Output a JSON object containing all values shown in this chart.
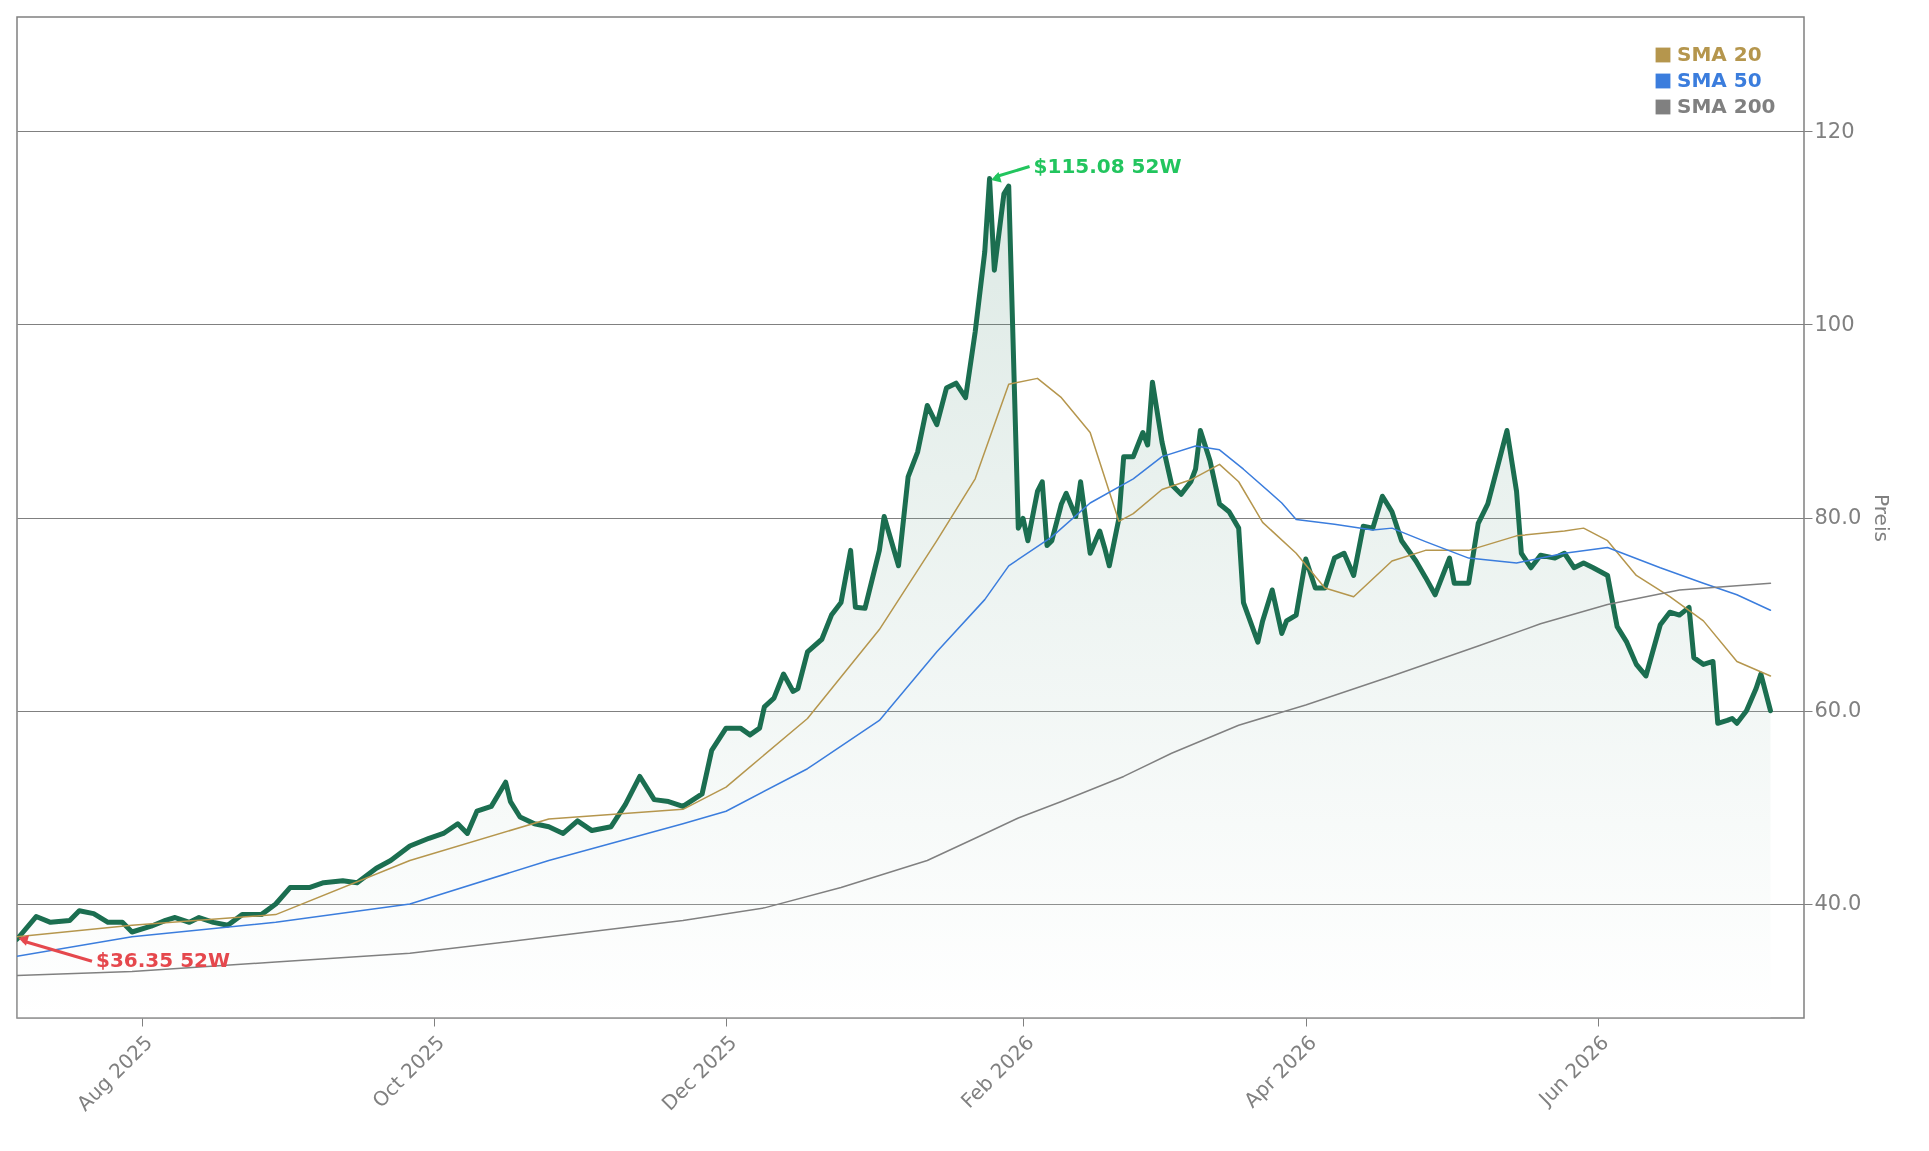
{
  "chart_data": {
    "type": "line",
    "ylabel": "Preis",
    "xlim": [
      "2025-07-06",
      "2026-07-14"
    ],
    "xticks": [
      {
        "value": "2025-08-01",
        "label": "Aug 2025"
      },
      {
        "value": "2025-10-01",
        "label": "Oct 2025"
      },
      {
        "value": "2025-12-01",
        "label": "Dec 2025"
      },
      {
        "value": "2026-02-01",
        "label": "Feb 2026"
      },
      {
        "value": "2026-04-01",
        "label": "Apr 2026"
      },
      {
        "value": "2026-06-01",
        "label": "Jun 2026"
      }
    ],
    "ylim": [
      28.2,
      131.8
    ],
    "yticks": [
      {
        "value": 40,
        "label": "40.0"
      },
      {
        "value": 60,
        "label": "60.0"
      },
      {
        "value": 80,
        "label": "80.0"
      },
      100,
      120
    ],
    "grid": "y",
    "legend": "top right",
    "series": [
      {
        "type": "area",
        "color": "#1b6e50",
        "x": [
          "2025-07-06",
          "2025-07-10",
          "2025-07-13",
          "2025-07-17",
          "2025-07-19",
          "2025-07-22",
          "2025-07-25",
          "2025-07-28",
          "2025-07-30",
          "2025-08-03",
          "2025-08-06",
          "2025-08-08",
          "2025-08-11",
          "2025-08-13",
          "2025-08-16",
          "2025-08-19",
          "2025-08-22",
          "2025-08-26",
          "2025-08-29",
          "2025-09-01",
          "2025-09-05",
          "2025-09-08",
          "2025-09-12",
          "2025-09-15",
          "2025-09-19",
          "2025-09-22",
          "2025-09-26",
          "2025-09-30",
          "2025-10-03",
          "2025-10-06",
          "2025-10-08",
          "2025-10-10",
          "2025-10-13",
          "2025-10-16",
          "2025-10-17",
          "2025-10-19",
          "2025-10-22",
          "2025-10-25",
          "2025-10-28",
          "2025-10-31",
          "2025-11-03",
          "2025-11-07",
          "2025-11-10",
          "2025-11-13",
          "2025-11-16",
          "2025-11-19",
          "2025-11-22",
          "2025-11-26",
          "2025-11-28",
          "2025-12-01",
          "2025-12-04",
          "2025-12-06",
          "2025-12-08",
          "2025-12-09",
          "2025-12-11",
          "2025-12-13",
          "2025-12-15",
          "2025-12-16",
          "2025-12-18",
          "2025-12-21",
          "2025-12-23",
          "2025-12-25",
          "2025-12-27",
          "2025-12-28",
          "2025-12-30",
          "2026-01-02",
          "2026-01-03",
          "2026-01-06",
          "2026-01-08",
          "2026-01-10",
          "2026-01-12",
          "2026-01-14",
          "2026-01-16",
          "2026-01-18",
          "2026-01-20",
          "2026-01-22",
          "2026-01-24",
          "2026-01-25",
          "2026-01-26",
          "2026-01-28",
          "2026-01-29",
          "2026-01-31",
          "2026-02-01",
          "2026-02-02",
          "2026-02-04",
          "2026-02-05",
          "2026-02-06",
          "2026-02-07",
          "2026-02-09",
          "2026-02-10",
          "2026-02-12",
          "2026-02-13",
          "2026-02-15",
          "2026-02-17",
          "2026-02-18",
          "2026-02-19",
          "2026-02-21",
          "2026-02-22",
          "2026-02-24",
          "2026-02-26",
          "2026-02-27",
          "2026-02-28",
          "2026-03-02",
          "2026-03-04",
          "2026-03-06",
          "2026-03-08",
          "2026-03-09",
          "2026-03-10",
          "2026-03-12",
          "2026-03-14",
          "2026-03-16",
          "2026-03-18",
          "2026-03-19",
          "2026-03-22",
          "2026-03-23",
          "2026-03-25",
          "2026-03-27",
          "2026-03-28",
          "2026-03-30",
          "2026-04-01",
          "2026-04-03",
          "2026-04-05",
          "2026-04-07",
          "2026-04-09",
          "2026-04-11",
          "2026-04-13",
          "2026-04-15",
          "2026-04-17",
          "2026-04-19",
          "2026-04-21",
          "2026-04-24",
          "2026-04-26",
          "2026-04-28",
          "2026-05-01",
          "2026-05-02",
          "2026-05-05",
          "2026-05-07",
          "2026-05-09",
          "2026-05-11",
          "2026-05-13",
          "2026-05-15",
          "2026-05-16",
          "2026-05-18",
          "2026-05-20",
          "2026-05-23",
          "2026-05-25",
          "2026-05-27",
          "2026-05-29",
          "2026-05-31",
          "2026-06-03",
          "2026-06-05",
          "2026-06-07",
          "2026-06-09",
          "2026-06-11",
          "2026-06-14",
          "2026-06-16",
          "2026-06-18",
          "2026-06-20",
          "2026-06-21",
          "2026-06-23",
          "2026-06-25",
          "2026-06-26",
          "2026-06-28",
          "2026-06-29",
          "2026-06-30",
          "2026-07-02",
          "2026-07-04",
          "2026-07-05",
          "2026-07-07"
        ],
        "values": [
          36.35,
          38.7,
          38.1,
          38.3,
          39.3,
          39.0,
          38.1,
          38.1,
          37.1,
          37.7,
          38.3,
          38.6,
          38.1,
          38.6,
          38.1,
          37.8,
          38.9,
          38.9,
          40.0,
          41.7,
          41.7,
          42.2,
          42.4,
          42.2,
          43.7,
          44.5,
          46.0,
          46.8,
          47.3,
          48.3,
          47.3,
          49.6,
          50.1,
          52.6,
          50.6,
          49.0,
          48.3,
          48.0,
          47.3,
          48.6,
          47.6,
          48.0,
          50.3,
          53.2,
          50.8,
          50.6,
          50.1,
          51.4,
          55.9,
          58.2,
          58.2,
          57.5,
          58.2,
          60.4,
          61.3,
          63.8,
          62.0,
          62.3,
          66.1,
          67.4,
          69.9,
          71.2,
          76.6,
          70.7,
          70.6,
          76.6,
          80.1,
          75.0,
          84.2,
          86.8,
          91.6,
          89.6,
          93.4,
          93.9,
          92.4,
          99.2,
          107.5,
          115.08,
          105.6,
          113.5,
          114.3,
          78.9,
          79.9,
          77.6,
          82.7,
          83.7,
          77.1,
          77.6,
          81.4,
          82.5,
          80.1,
          83.7,
          76.3,
          78.6,
          76.9,
          75.0,
          79.9,
          86.3,
          86.3,
          88.8,
          87.5,
          94.0,
          87.8,
          83.4,
          82.4,
          83.7,
          85.0,
          89.0,
          85.9,
          81.4,
          80.6,
          78.9,
          71.2,
          67.1,
          69.3,
          72.5,
          68.0,
          69.3,
          69.9,
          75.7,
          72.7,
          72.7,
          75.8,
          76.3,
          74.0,
          79.1,
          78.9,
          82.2,
          80.6,
          77.6,
          75.5,
          73.8,
          72.0,
          75.8,
          73.2,
          73.2,
          79.4,
          81.4,
          85.2,
          89.0,
          82.7,
          76.3,
          74.8,
          76.1,
          75.8,
          76.3,
          74.8,
          75.3,
          74.8,
          74.0,
          68.7,
          67.1,
          64.8,
          63.6,
          68.9,
          70.2,
          69.9,
          70.7,
          65.5,
          64.8,
          65.1,
          58.7,
          59.0,
          59.2,
          58.7,
          60.0,
          62.3,
          63.8,
          60.0
        ]
      },
      {
        "name": "SMA 20",
        "color": "#b5964d",
        "x": [
          "2025-07-06",
          "2025-07-30",
          "2025-08-29",
          "2025-09-26",
          "2025-10-25",
          "2025-11-22",
          "2025-12-01",
          "2025-12-18",
          "2026-01-02",
          "2026-01-14",
          "2026-01-22",
          "2026-01-29",
          "2026-02-04",
          "2026-02-09",
          "2026-02-15",
          "2026-02-21",
          "2026-02-24",
          "2026-03-02",
          "2026-03-08",
          "2026-03-14",
          "2026-03-18",
          "2026-03-23",
          "2026-03-30",
          "2026-04-05",
          "2026-04-11",
          "2026-04-19",
          "2026-04-26",
          "2026-05-05",
          "2026-05-15",
          "2026-05-25",
          "2026-05-29",
          "2026-06-03",
          "2026-06-09",
          "2026-06-16",
          "2026-06-23",
          "2026-06-30",
          "2026-07-07"
        ],
        "values": [
          36.6,
          37.8,
          38.9,
          44.5,
          48.8,
          49.8,
          52.1,
          59.2,
          68.4,
          77.6,
          84.0,
          93.8,
          94.4,
          92.4,
          88.8,
          79.6,
          80.4,
          82.9,
          83.9,
          85.5,
          83.7,
          79.5,
          76.3,
          72.7,
          71.8,
          75.5,
          76.6,
          76.6,
          78.1,
          78.6,
          78.9,
          77.6,
          74.0,
          71.8,
          69.3,
          65.1,
          63.6
        ]
      },
      {
        "name": "SMA 50",
        "color": "#3b7ddd",
        "x": [
          "2025-07-06",
          "2025-07-30",
          "2025-08-29",
          "2025-09-26",
          "2025-10-25",
          "2025-11-22",
          "2025-12-01",
          "2025-12-18",
          "2026-01-02",
          "2026-01-14",
          "2026-01-24",
          "2026-01-29",
          "2026-02-07",
          "2026-02-15",
          "2026-02-24",
          "2026-03-02",
          "2026-03-09",
          "2026-03-14",
          "2026-03-19",
          "2026-03-27",
          "2026-03-30",
          "2026-04-07",
          "2026-04-15",
          "2026-04-19",
          "2026-04-26",
          "2026-05-05",
          "2026-05-15",
          "2026-05-25",
          "2026-06-03",
          "2026-06-14",
          "2026-06-23",
          "2026-06-30",
          "2026-07-07"
        ],
        "values": [
          34.6,
          36.6,
          38.1,
          40.0,
          44.5,
          48.3,
          49.6,
          54.0,
          59.0,
          66.1,
          71.5,
          75.0,
          78.0,
          81.5,
          84.0,
          86.3,
          87.4,
          87.0,
          85.0,
          81.5,
          79.8,
          79.3,
          78.7,
          78.9,
          77.5,
          75.8,
          75.3,
          76.3,
          76.9,
          74.8,
          73.2,
          72.0,
          70.4
        ]
      },
      {
        "name": "SMA 200",
        "color": "#808080",
        "x": [
          "2025-07-06",
          "2025-07-30",
          "2025-08-29",
          "2025-09-26",
          "2025-10-25",
          "2025-11-22",
          "2025-12-09",
          "2025-12-25",
          "2026-01-12",
          "2026-01-22",
          "2026-01-31",
          "2026-02-09",
          "2026-02-22",
          "2026-03-04",
          "2026-03-18",
          "2026-04-01",
          "2026-04-19",
          "2026-05-07",
          "2026-05-20",
          "2026-06-03",
          "2026-06-18",
          "2026-07-07"
        ],
        "values": [
          32.6,
          33.0,
          34.0,
          34.9,
          36.6,
          38.3,
          39.6,
          41.7,
          44.5,
          46.8,
          48.9,
          50.6,
          53.2,
          55.6,
          58.5,
          60.6,
          63.6,
          66.7,
          69.0,
          71.0,
          72.5,
          73.2
        ]
      }
    ],
    "annotations": [
      {
        "text": "$115.08 52W",
        "x": "2026-01-25",
        "y": 115.08
      },
      {
        "text": "$36.35 52W",
        "x": "2025-07-06",
        "y": 36.35
      }
    ]
  }
}
